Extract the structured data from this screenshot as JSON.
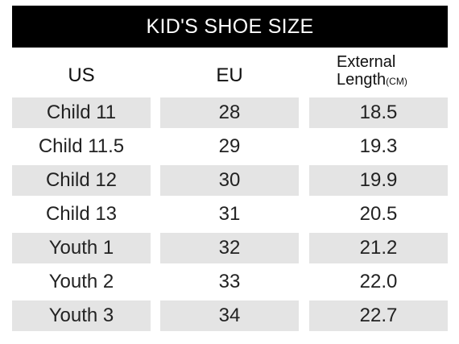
{
  "title": "KID'S SHOE SIZE",
  "headers": {
    "us": "US",
    "eu": "EU",
    "length_line1": "External",
    "length_line2": "Length",
    "length_unit": "(CM)"
  },
  "rows": [
    {
      "us": "Child 11",
      "eu": "28",
      "length": "18.5"
    },
    {
      "us": "Child 11.5",
      "eu": "29",
      "length": "19.3"
    },
    {
      "us": "Child 12",
      "eu": "30",
      "length": "19.9"
    },
    {
      "us": "Child 13",
      "eu": "31",
      "length": "20.5"
    },
    {
      "us": "Youth 1",
      "eu": "32",
      "length": "21.2"
    },
    {
      "us": "Youth 2",
      "eu": "33",
      "length": "22.0"
    },
    {
      "us": "Youth 3",
      "eu": "34",
      "length": "22.7"
    }
  ],
  "colors": {
    "title_bg": "#000000",
    "title_fg": "#ffffff",
    "shaded_row": "#e4e4e4"
  }
}
